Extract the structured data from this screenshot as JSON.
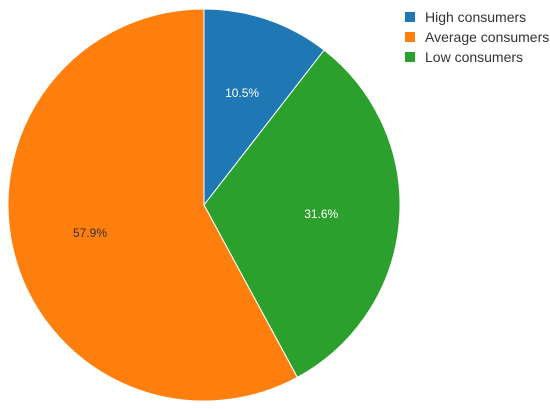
{
  "chart_data": {
    "type": "pie",
    "title": "",
    "legend_position": "top-right",
    "start_angle_deg": 90,
    "direction": "clockwise",
    "slices": [
      {
        "label": "High consumers",
        "value": 10.5,
        "value_label": "10.5%",
        "color": "#1f77b4",
        "label_color": "#ffffff"
      },
      {
        "label": "Low consumers",
        "value": 31.6,
        "value_label": "31.6%",
        "color": "#2ca02c",
        "label_color": "#ffffff"
      },
      {
        "label": "Average consumers",
        "value": 57.9,
        "value_label": "57.9%",
        "color": "#ff7f0e",
        "label_color": "#333333"
      }
    ],
    "legend": [
      {
        "label": "High consumers",
        "color": "#1f77b4"
      },
      {
        "label": "Average consumers",
        "color": "#ff7f0e"
      },
      {
        "label": "Low consumers",
        "color": "#2ca02c"
      }
    ]
  }
}
